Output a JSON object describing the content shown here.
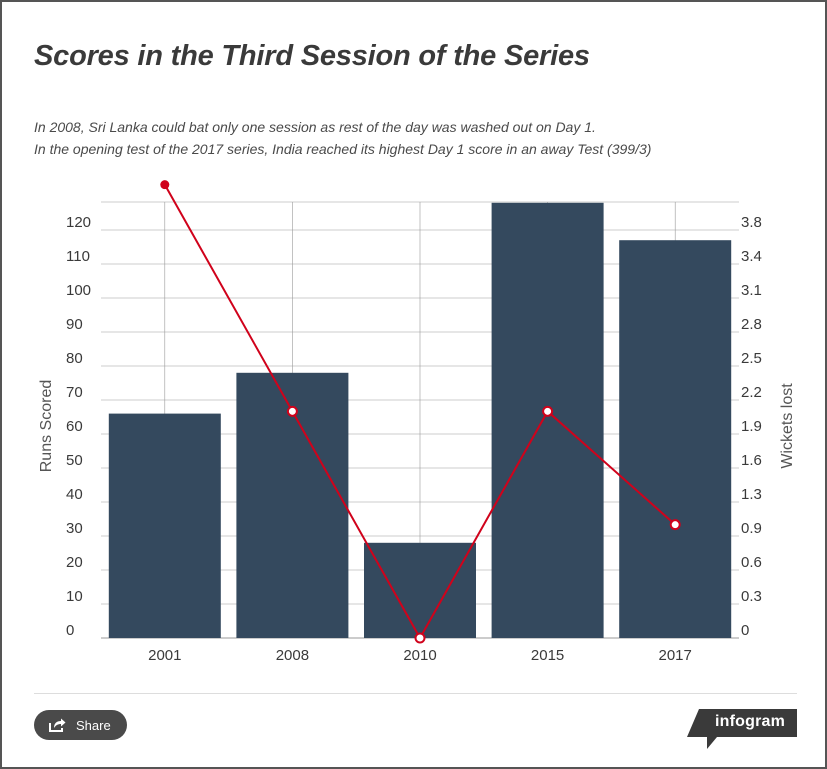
{
  "header": {
    "title": "Scores in the Third Session of the Series",
    "subtitle_lines": [
      "In 2008, Sri Lanka could bat only one session as rest of the day was washed out on Day 1.",
      "In the opening test of the 2017 series, India reached its highest Day 1 score in an away Test (399/3)"
    ]
  },
  "colors": {
    "bar": "#34495e",
    "line": "#d0021b",
    "grid": "#9a9a9a",
    "text": "#3a3a3a",
    "axis_label": "#555555"
  },
  "chart_data": {
    "type": "bar",
    "title": "Scores in the Third Session of the Series",
    "categories": [
      "2001",
      "2008",
      "2010",
      "2015",
      "2017"
    ],
    "ylabel": "Runs Scored",
    "y2label": "Wickets lost",
    "ylim": [
      0,
      128
    ],
    "y2lim": [
      0,
      3.84
    ],
    "yticks": [
      "0",
      "10",
      "20",
      "30",
      "40",
      "50",
      "60",
      "70",
      "80",
      "90",
      "100",
      "110",
      "120"
    ],
    "y2ticks": [
      "0",
      "0.3",
      "0.6",
      "0.9",
      "1.3",
      "1.6",
      "1.9",
      "2.2",
      "2.5",
      "2.8",
      "3.1",
      "3.4",
      "3.8"
    ],
    "grid": true,
    "legend": "none",
    "series": [
      {
        "type": "bar",
        "axis": "left",
        "values": [
          66,
          78,
          28,
          128,
          117
        ]
      },
      {
        "type": "line",
        "axis": "right",
        "values": [
          4,
          2,
          0,
          2,
          1
        ]
      }
    ]
  },
  "footer": {
    "share_label": "Share",
    "share_icon": "share-icon",
    "brand": "infogram"
  }
}
